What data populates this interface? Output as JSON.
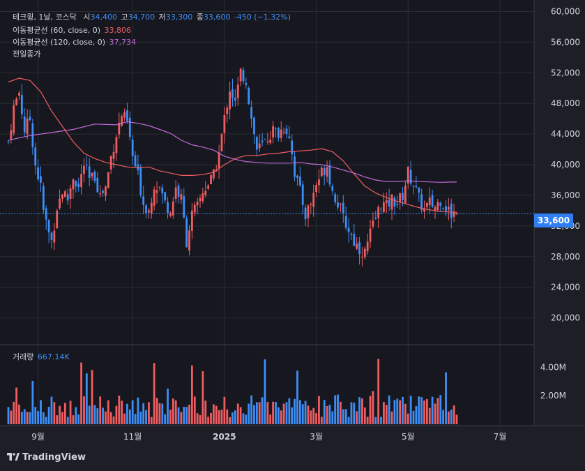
{
  "header": {
    "symbol": "테크윙, 1날, 코스닥",
    "open_label": "시",
    "open": "34,400",
    "high_label": "고",
    "high": "34,700",
    "low_label": "저",
    "low": "33,300",
    "close_label": "종",
    "close": "33,600",
    "change": "-450 (−1.32%)",
    "ma60_label": "이동평균선 (60, close, 0)",
    "ma60_value": "33,806",
    "ma120_label": "이동평균선 (120, close, 0)",
    "ma120_value": "37,734",
    "prev_close_label": "전일종가",
    "volume_label": "거래량",
    "volume_value": "667.14K",
    "current_price_tag": "33,600",
    "brand": "TradingView"
  },
  "colors": {
    "background": "#1e1f26",
    "grid": "#2a2c34",
    "up": "#f05d61",
    "down": "#3d8ef7",
    "ma60": "#f05d61",
    "ma120": "#c06ad8",
    "price_line": "#3d8ef7"
  },
  "chart_data": {
    "type": "candlestick",
    "title": "테크윙, 1날, 코스닥",
    "price_axis": {
      "ticks": [
        20000,
        24000,
        28000,
        32000,
        36000,
        40000,
        44000,
        48000,
        52000,
        56000,
        60000
      ],
      "tick_labels": [
        "20,000",
        "24,000",
        "28,000",
        "32,000",
        "36,000",
        "40,000",
        "44,000",
        "48,000",
        "52,000",
        "56,000",
        "60,000"
      ],
      "ylim": [
        16500,
        61500
      ]
    },
    "volume_axis": {
      "ticks": [
        2000000,
        4000000
      ],
      "tick_labels": [
        "2.00M",
        "4.00M"
      ],
      "ylim": [
        0,
        5300000
      ]
    },
    "time_axis": {
      "labels": [
        "9월",
        "11월",
        "2025",
        "3월",
        "5월",
        "7월"
      ],
      "label_index": [
        11,
        46,
        80,
        114,
        148,
        182
      ]
    },
    "current_price": 33600,
    "price_path": [
      [
        0,
        43000
      ],
      [
        2,
        47500
      ],
      [
        4,
        49500
      ],
      [
        6,
        44500
      ],
      [
        8,
        46000
      ],
      [
        10,
        40000
      ],
      [
        12,
        37000
      ],
      [
        13,
        34000
      ],
      [
        15,
        31000
      ],
      [
        16,
        30000
      ],
      [
        18,
        34500
      ],
      [
        20,
        36500
      ],
      [
        22,
        35500
      ],
      [
        24,
        38500
      ],
      [
        26,
        37000
      ],
      [
        28,
        40000
      ],
      [
        30,
        38000
      ],
      [
        32,
        38500
      ],
      [
        34,
        36000
      ],
      [
        36,
        37000
      ],
      [
        38,
        41000
      ],
      [
        40,
        44000
      ],
      [
        42,
        46500
      ],
      [
        44,
        45500
      ],
      [
        46,
        41000
      ],
      [
        48,
        38500
      ],
      [
        50,
        35000
      ],
      [
        52,
        34000
      ],
      [
        54,
        37500
      ],
      [
        56,
        37000
      ],
      [
        58,
        35000
      ],
      [
        60,
        34000
      ],
      [
        62,
        37000
      ],
      [
        64,
        35500
      ],
      [
        66,
        30000
      ],
      [
        68,
        33500
      ],
      [
        70,
        34500
      ],
      [
        72,
        36500
      ],
      [
        74,
        37500
      ],
      [
        76,
        38500
      ],
      [
        78,
        41500
      ],
      [
        80,
        46000
      ],
      [
        82,
        50000
      ],
      [
        84,
        48000
      ],
      [
        86,
        52000
      ],
      [
        88,
        51000
      ],
      [
        90,
        46000
      ],
      [
        92,
        42000
      ],
      [
        94,
        42500
      ],
      [
        96,
        43500
      ],
      [
        98,
        44500
      ],
      [
        100,
        44000
      ],
      [
        102,
        45000
      ],
      [
        104,
        44000
      ],
      [
        106,
        39000
      ],
      [
        108,
        36500
      ],
      [
        110,
        33500
      ],
      [
        112,
        35000
      ],
      [
        114,
        37500
      ],
      [
        116,
        39000
      ],
      [
        118,
        40000
      ],
      [
        120,
        36500
      ],
      [
        122,
        35000
      ],
      [
        124,
        33000
      ],
      [
        126,
        31500
      ],
      [
        128,
        30000
      ],
      [
        130,
        29000
      ],
      [
        132,
        28500
      ],
      [
        134,
        31000
      ],
      [
        136,
        33000
      ],
      [
        138,
        35000
      ],
      [
        140,
        34500
      ],
      [
        142,
        35500
      ],
      [
        144,
        35000
      ],
      [
        146,
        36000
      ],
      [
        148,
        39000
      ],
      [
        150,
        37500
      ],
      [
        152,
        35500
      ],
      [
        154,
        34000
      ],
      [
        156,
        35000
      ],
      [
        158,
        34500
      ],
      [
        160,
        35500
      ],
      [
        162,
        34500
      ],
      [
        164,
        33500
      ],
      [
        166,
        34000
      ]
    ],
    "ma60_path": [
      [
        0,
        50800
      ],
      [
        4,
        51300
      ],
      [
        8,
        51000
      ],
      [
        12,
        49500
      ],
      [
        16,
        47000
      ],
      [
        20,
        45000
      ],
      [
        24,
        43000
      ],
      [
        28,
        41500
      ],
      [
        32,
        40800
      ],
      [
        36,
        40300
      ],
      [
        40,
        40000
      ],
      [
        44,
        39700
      ],
      [
        48,
        39600
      ],
      [
        52,
        39700
      ],
      [
        56,
        39200
      ],
      [
        60,
        38900
      ],
      [
        64,
        38600
      ],
      [
        68,
        38600
      ],
      [
        72,
        38700
      ],
      [
        76,
        39000
      ],
      [
        80,
        40000
      ],
      [
        84,
        40800
      ],
      [
        88,
        41200
      ],
      [
        92,
        41200
      ],
      [
        96,
        41400
      ],
      [
        100,
        41500
      ],
      [
        104,
        41700
      ],
      [
        108,
        41800
      ],
      [
        112,
        41900
      ],
      [
        116,
        42100
      ],
      [
        120,
        41700
      ],
      [
        124,
        40500
      ],
      [
        128,
        38800
      ],
      [
        132,
        37200
      ],
      [
        136,
        36300
      ],
      [
        140,
        35700
      ],
      [
        144,
        35200
      ],
      [
        148,
        34800
      ],
      [
        152,
        34400
      ],
      [
        156,
        34100
      ],
      [
        160,
        33900
      ],
      [
        164,
        33820
      ],
      [
        166,
        33806
      ]
    ],
    "ma120_path": [
      [
        0,
        43200
      ],
      [
        8,
        43800
      ],
      [
        16,
        44200
      ],
      [
        24,
        44600
      ],
      [
        32,
        45300
      ],
      [
        40,
        45200
      ],
      [
        44,
        45600
      ],
      [
        48,
        45400
      ],
      [
        52,
        45100
      ],
      [
        56,
        44600
      ],
      [
        60,
        44100
      ],
      [
        64,
        43200
      ],
      [
        68,
        42600
      ],
      [
        72,
        42300
      ],
      [
        76,
        41900
      ],
      [
        80,
        41100
      ],
      [
        84,
        40700
      ],
      [
        88,
        40400
      ],
      [
        92,
        40300
      ],
      [
        96,
        40200
      ],
      [
        100,
        40200
      ],
      [
        104,
        40200
      ],
      [
        108,
        40300
      ],
      [
        112,
        40100
      ],
      [
        116,
        40000
      ],
      [
        120,
        39700
      ],
      [
        124,
        39300
      ],
      [
        128,
        38900
      ],
      [
        132,
        38400
      ],
      [
        136,
        38000
      ],
      [
        140,
        37800
      ],
      [
        144,
        37800
      ],
      [
        148,
        37900
      ],
      [
        152,
        37800
      ],
      [
        156,
        37750
      ],
      [
        160,
        37700
      ],
      [
        164,
        37734
      ],
      [
        166,
        37734
      ]
    ]
  }
}
